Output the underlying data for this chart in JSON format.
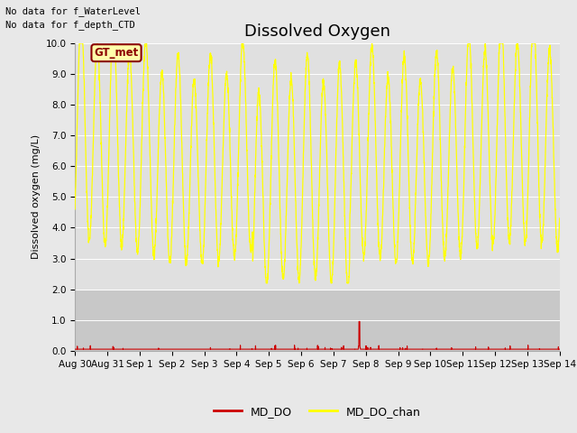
{
  "title": "Dissolved Oxygen",
  "ylabel": "Dissolved oxygen (mg/L)",
  "annotation_lines": [
    "No data for f_WaterLevel",
    "No data for f_depth_CTD"
  ],
  "gt_met_label": "GT_met",
  "ylim": [
    0.0,
    10.0
  ],
  "yticks": [
    0.0,
    1.0,
    2.0,
    3.0,
    4.0,
    5.0,
    6.0,
    7.0,
    8.0,
    9.0,
    10.0
  ],
  "legend": [
    {
      "label": "MD_DO",
      "color": "#cc0000"
    },
    {
      "label": "MD_DO_chan",
      "color": "#ffff00"
    }
  ],
  "background_color": "#e8e8e8",
  "plot_bg_color": "#e0e0e0",
  "shade_below": "#cccccc",
  "title_fontsize": 13,
  "label_fontsize": 8,
  "tick_fontsize": 7.5,
  "n_days": 15,
  "x_tick_labels": [
    "Aug 30",
    "Aug 31",
    "Sep 1",
    "Sep 2",
    "Sep 3",
    "Sep 4",
    "Sep 5",
    "Sep 6",
    "Sep 7",
    "Sep 8",
    "Sep 9",
    "Sep 10",
    "Sep 11",
    "Sep 12",
    "Sep 13",
    "Sep 14"
  ],
  "x_tick_positions": [
    0,
    1,
    2,
    3,
    4,
    5,
    6,
    7,
    8,
    9,
    10,
    11,
    12,
    13,
    14,
    15
  ],
  "md_do_spike_day": 8.8,
  "md_do_spike_val": 0.95,
  "md_do_base": 0.05
}
